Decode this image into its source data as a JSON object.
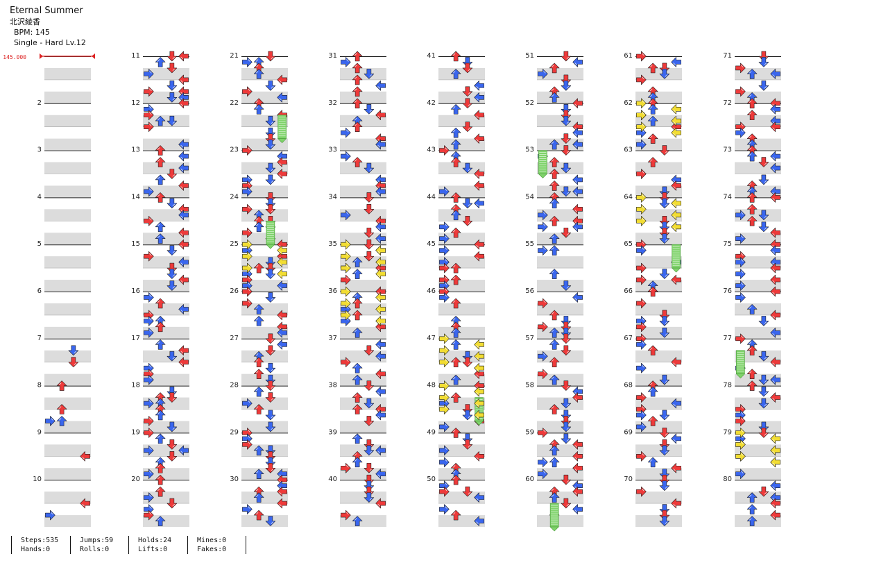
{
  "song": {
    "title": "Eternal Summer",
    "artist": "北沢綾香",
    "bpm_text": "BPM: 145",
    "chart_text": "Single - Hard  Lv.12"
  },
  "bpm_marker": {
    "label": "145.000",
    "color": "#dd2222"
  },
  "measures": {
    "first": 1,
    "last": 80,
    "columns": 8,
    "per_column": 10,
    "labels": [
      "2",
      "3",
      "4",
      "5",
      "6",
      "7",
      "8",
      "9",
      "10",
      "11",
      "12",
      "13",
      "14",
      "15",
      "16",
      "17",
      "18",
      "19",
      "20",
      "21",
      "22",
      "23",
      "24",
      "25",
      "26",
      "27",
      "28",
      "29",
      "30",
      "31",
      "32",
      "33",
      "34",
      "35",
      "36",
      "37",
      "38",
      "39",
      "40",
      "41",
      "42",
      "43",
      "44",
      "45",
      "46",
      "47",
      "48",
      "49",
      "50",
      "51",
      "52",
      "53",
      "54",
      "55",
      "56",
      "57",
      "58",
      "59",
      "60",
      "61",
      "62",
      "63",
      "64",
      "65",
      "66",
      "67",
      "68",
      "69",
      "70",
      "71",
      "72",
      "73",
      "74",
      "75",
      "76",
      "77",
      "78",
      "79",
      "80"
    ],
    "label_first_shown": false
  },
  "note_colors": {
    "quarter": "#ee3a3a",
    "eighth": "#3a66ee",
    "sixteenth": "#f2dd33",
    "hold": "#7fd36b"
  },
  "arrow_icons": [
    "left-arrow-icon",
    "down-arrow-icon",
    "up-arrow-icon",
    "right-arrow-icon"
  ],
  "stats": {
    "steps": "Steps:535",
    "hands": "Hands:0",
    "jumps": "Jumps:59",
    "rolls": "Rolls:0",
    "holds": "Holds:24",
    "lifts": "Lifts:0",
    "mines": "Mines:0",
    "fakes": "Fakes:0"
  }
}
